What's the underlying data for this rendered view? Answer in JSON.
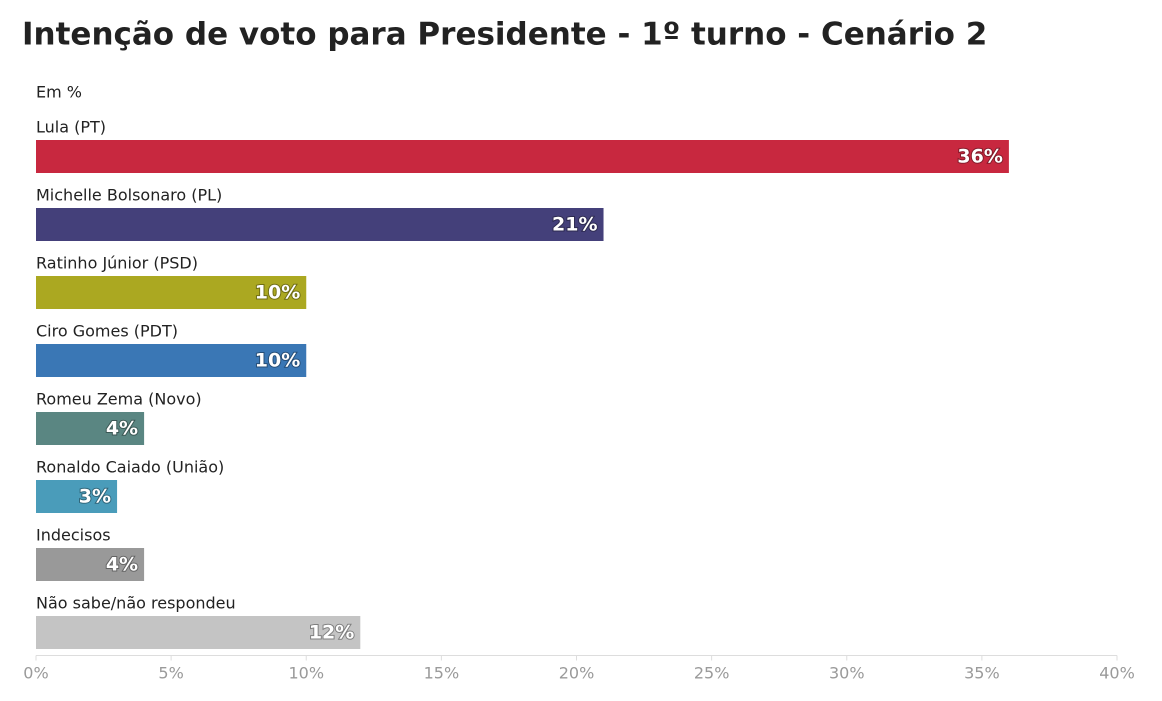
{
  "chart_data": {
    "type": "bar",
    "orientation": "horizontal",
    "title": "Intenção de voto para Presidente - 1º turno - Cenário 2",
    "subtitle": "Em %",
    "categories": [
      "Lula (PT)",
      "Michelle Bolsonaro (PL)",
      "Ratinho Júnior (PSD)",
      "Ciro Gomes (PDT)",
      "Romeu Zema (Novo)",
      "Ronaldo Caiado (União)",
      "Indecisos",
      "Não sabe/não respondeu"
    ],
    "values": [
      36,
      21,
      10,
      10,
      4,
      3,
      4,
      12
    ],
    "value_labels": [
      "36%",
      "21%",
      "10%",
      "10%",
      "4%",
      "3%",
      "4%",
      "12%"
    ],
    "colors": [
      "#c8283f",
      "#44407a",
      "#aba821",
      "#3a77b5",
      "#5a8682",
      "#4a9cba",
      "#999999",
      "#c4c4c4"
    ],
    "xlim": [
      0,
      40
    ],
    "xticks": [
      {
        "value": 0,
        "label": "0%"
      },
      {
        "value": 5,
        "label": "5%"
      },
      {
        "value": 10,
        "label": "10%"
      },
      {
        "value": 15,
        "label": "15%"
      },
      {
        "value": 20,
        "label": "20%"
      },
      {
        "value": 25,
        "label": "25%"
      },
      {
        "value": 30,
        "label": "30%"
      },
      {
        "value": 35,
        "label": "35%"
      },
      {
        "value": 40,
        "label": "40%"
      }
    ],
    "grid": false
  }
}
